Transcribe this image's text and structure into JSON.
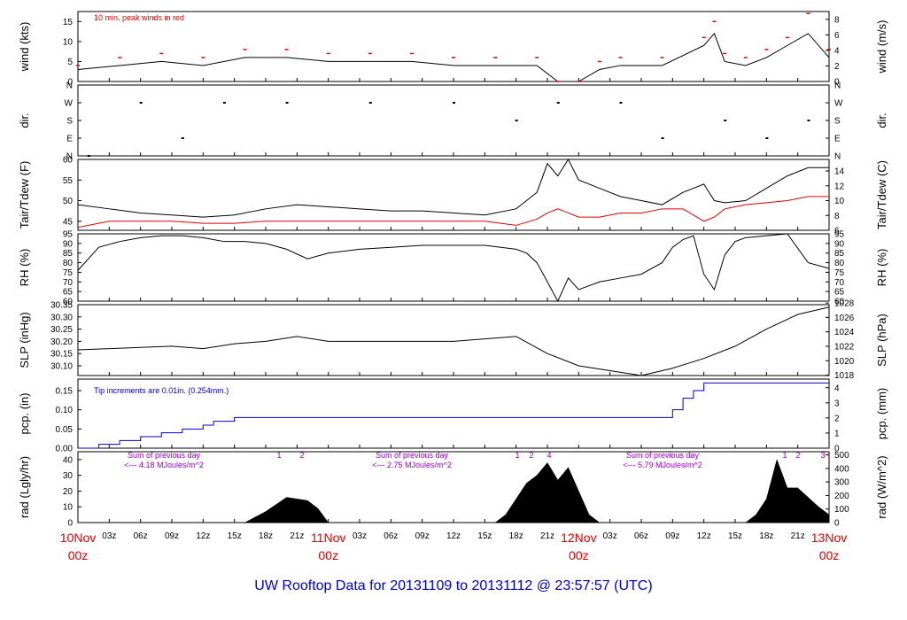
{
  "footer_title": "UW Rooftop Data for 20131109  to  20131112 @ 23:57:57  (UTC)",
  "colors": {
    "red": "#e00000",
    "blue": "#0000cc",
    "purple": "#9900cc",
    "black": "#000000"
  },
  "time_axis": {
    "hour_ticks": [
      "03z",
      "06z",
      "09z",
      "12z",
      "15z",
      "18z",
      "21z",
      "03z",
      "06z",
      "09z",
      "12z",
      "15z",
      "18z",
      "21z",
      "03z",
      "06z",
      "09z",
      "12z",
      "15z",
      "18z",
      "21z"
    ],
    "day_labels": [
      {
        "date": "10Nov",
        "hour": "00z"
      },
      {
        "date": "11Nov",
        "hour": "00z"
      },
      {
        "date": "12Nov",
        "hour": "00z"
      },
      {
        "date": "13Nov",
        "hour": "00z"
      }
    ],
    "range_hours": [
      0,
      72
    ]
  },
  "panels": {
    "wind": {
      "left_label": "wind (kts)",
      "right_label": "wind (m/s)",
      "left_ticks": [
        "0",
        "5",
        "10",
        "15"
      ],
      "right_ticks": [
        "0",
        "2",
        "4",
        "6",
        "8"
      ],
      "annotation": "10 min. peak winds in red",
      "ylim": [
        0,
        17.5
      ]
    },
    "dir": {
      "left_label": "dir.",
      "right_label": "dir.",
      "ticks": [
        "N",
        "E",
        "S",
        "W",
        "N"
      ]
    },
    "temp": {
      "left_label": "Tair/Tdew (F)",
      "right_label": "Tair/Tdew (C)",
      "left_ticks": [
        "45",
        "50",
        "55",
        "60"
      ],
      "right_ticks": [
        "6",
        "8",
        "10",
        "12",
        "14"
      ],
      "ylim": [
        42.8,
        60
      ]
    },
    "rh": {
      "left_label": "RH (%)",
      "right_label": "RH (%)",
      "ticks": [
        "60",
        "65",
        "70",
        "75",
        "80",
        "85",
        "90",
        "95"
      ],
      "ylim": [
        60,
        95
      ]
    },
    "slp": {
      "left_label": "SLP (inHg)",
      "right_label": "SLP (hPa)",
      "left_ticks": [
        "30.10",
        "30.15",
        "30.20",
        "30.25",
        "30.30",
        "30.35"
      ],
      "right_ticks": [
        "1018",
        "1020",
        "1022",
        "1024",
        "1026",
        "1028"
      ],
      "ylim": [
        30.06,
        30.35
      ]
    },
    "pcp": {
      "left_label": "pcp. (in)",
      "right_label": "pcp. (mm)",
      "left_ticks": [
        "0.00",
        "0.05",
        "0.10",
        "0.15"
      ],
      "right_ticks": [
        "0",
        "1",
        "2",
        "3",
        "4"
      ],
      "annotation": "Tip increments are 0.01in. (0.254mm.)",
      "ylim": [
        0,
        0.18
      ]
    },
    "rad": {
      "left_label": "rad (Lgly/hr)",
      "right_label": "rad (W/m^2)",
      "left_ticks": [
        "0",
        "10",
        "20",
        "30",
        "40"
      ],
      "right_ticks": [
        "0",
        "100",
        "200",
        "300",
        "400",
        "500"
      ],
      "ylim": [
        0,
        45
      ],
      "day_sums": [
        {
          "line1": "Sum of previous day",
          "line2": "<--- 4.18 MJoules/m^2"
        },
        {
          "line1": "Sum of previous day",
          "line2": "<--- 2.75 MJoules/m^2"
        },
        {
          "line1": "Sum of previous day",
          "line2": "<--- 5.79 MJoules/m^2"
        }
      ],
      "markers": [
        "1",
        "2",
        "1",
        "2",
        "4",
        "1",
        "2",
        "3"
      ]
    }
  },
  "chart_data": {
    "type": "line",
    "x_unit": "hours since 10Nov 00z",
    "series": [
      {
        "name": "wind",
        "x": [
          0,
          4,
          8,
          12,
          16,
          20,
          24,
          28,
          32,
          36,
          40,
          44,
          46,
          48,
          50,
          52,
          56,
          60,
          61,
          62,
          64,
          66,
          68,
          70,
          72
        ],
        "values": [
          3,
          4,
          5,
          4,
          6,
          6,
          5,
          5,
          5,
          4,
          4,
          4,
          0,
          0,
          3,
          4,
          4,
          9,
          12,
          5,
          4,
          6,
          9,
          12,
          6
        ]
      },
      {
        "name": "peak wind",
        "x": [
          0,
          4,
          8,
          12,
          16,
          20,
          24,
          28,
          32,
          36,
          40,
          44,
          46,
          48,
          50,
          52,
          56,
          60,
          61,
          62,
          64,
          66,
          68,
          70,
          72
        ],
        "values": [
          4,
          6,
          7,
          6,
          8,
          8,
          7,
          7,
          7,
          6,
          6,
          6,
          0,
          0,
          5,
          6,
          6,
          11,
          15,
          7,
          6,
          8,
          11,
          17,
          8
        ]
      },
      {
        "name": "Tair",
        "x": [
          0,
          3,
          6,
          9,
          12,
          15,
          18,
          21,
          24,
          27,
          30,
          33,
          36,
          39,
          42,
          44,
          45,
          46,
          47,
          48,
          50,
          52,
          54,
          56,
          58,
          60,
          61,
          62,
          64,
          66,
          68,
          70,
          72
        ],
        "values": [
          49,
          48,
          47,
          46.5,
          46,
          46.5,
          48,
          49,
          48.5,
          48,
          47.5,
          47.5,
          47,
          46.5,
          48,
          52,
          59,
          56,
          60,
          55,
          53,
          51,
          50,
          49,
          52,
          54,
          50,
          49.5,
          50,
          53,
          56,
          58,
          58
        ]
      },
      {
        "name": "Tdew",
        "x": [
          0,
          3,
          6,
          9,
          12,
          15,
          18,
          21,
          24,
          27,
          30,
          33,
          36,
          39,
          42,
          44,
          45,
          46,
          47,
          48,
          50,
          52,
          54,
          56,
          58,
          60,
          61,
          62,
          64,
          66,
          68,
          70,
          72
        ],
        "values": [
          43.5,
          45,
          45,
          45,
          44.5,
          44.5,
          45,
          45,
          45,
          45,
          45,
          45,
          45,
          45,
          44,
          45.5,
          47,
          48,
          47,
          46,
          46,
          47,
          47,
          48,
          48,
          45,
          46,
          48,
          49,
          49.5,
          50,
          51,
          51
        ]
      },
      {
        "name": "RH",
        "x": [
          0,
          2,
          4,
          6,
          8,
          10,
          12,
          14,
          16,
          18,
          20,
          22,
          24,
          27,
          30,
          33,
          36,
          39,
          42,
          43,
          44,
          45,
          46,
          47,
          48,
          50,
          52,
          54,
          56,
          57,
          58,
          59,
          60,
          61,
          62,
          63,
          64,
          66,
          68,
          70,
          72
        ],
        "values": [
          76,
          88,
          91,
          93,
          94,
          94,
          93,
          91,
          91,
          90,
          87,
          82,
          85,
          87,
          88,
          89,
          89,
          89,
          87,
          85,
          80,
          70,
          60,
          72,
          66,
          70,
          72,
          74,
          80,
          88,
          92,
          94,
          74,
          66,
          84,
          91,
          93,
          94,
          95,
          80,
          77
        ]
      },
      {
        "name": "SLP",
        "x": [
          0,
          3,
          6,
          9,
          12,
          15,
          18,
          21,
          24,
          27,
          30,
          33,
          36,
          39,
          42,
          45,
          48,
          51,
          54,
          57,
          60,
          63,
          66,
          69,
          72
        ],
        "values": [
          30.165,
          30.17,
          30.175,
          30.18,
          30.17,
          30.19,
          30.2,
          30.22,
          30.2,
          30.2,
          30.2,
          30.2,
          30.2,
          30.21,
          30.22,
          30.15,
          30.1,
          30.08,
          30.06,
          30.09,
          30.13,
          30.18,
          30.25,
          30.31,
          30.34
        ]
      },
      {
        "name": "pcp",
        "x": [
          0,
          1,
          2,
          3,
          4,
          5,
          6,
          7,
          8,
          9,
          10,
          11,
          12,
          13,
          14,
          15,
          16,
          17,
          18,
          20,
          28,
          36,
          44,
          52,
          56,
          57,
          58,
          59,
          60,
          61,
          62,
          63,
          64,
          66,
          70,
          72
        ],
        "values": [
          0,
          0,
          0.01,
          0.01,
          0.02,
          0.02,
          0.03,
          0.03,
          0.04,
          0.04,
          0.05,
          0.05,
          0.06,
          0.07,
          0.07,
          0.08,
          0.08,
          0.08,
          0.08,
          0.08,
          0.08,
          0.08,
          0.08,
          0.08,
          0.08,
          0.1,
          0.13,
          0.15,
          0.17,
          0.17,
          0.17,
          0.17,
          0.17,
          0.17,
          0.17,
          0.17
        ]
      },
      {
        "name": "rad",
        "x": [
          0,
          16,
          18,
          20,
          22,
          23,
          24,
          40,
          41,
          42,
          43,
          44,
          45,
          46,
          47,
          48,
          49,
          50,
          64,
          65,
          66,
          67,
          68,
          69,
          70,
          71,
          72
        ],
        "values": [
          0,
          0,
          7,
          16,
          14,
          9,
          0,
          0,
          5,
          15,
          25,
          30,
          38,
          27,
          35,
          20,
          5,
          0,
          0,
          5,
          15,
          40,
          22,
          22,
          16,
          10,
          5
        ]
      }
    ],
    "wind_dir_points": [
      {
        "x": 1,
        "v": "N"
      },
      {
        "x": 6,
        "v": "W"
      },
      {
        "x": 10,
        "v": "E"
      },
      {
        "x": 14,
        "v": "W"
      },
      {
        "x": 20,
        "v": "W"
      },
      {
        "x": 28,
        "v": "W"
      },
      {
        "x": 36,
        "v": "W"
      },
      {
        "x": 42,
        "v": "S"
      },
      {
        "x": 46,
        "v": "W"
      },
      {
        "x": 52,
        "v": "W"
      },
      {
        "x": 56,
        "v": "E"
      },
      {
        "x": 62,
        "v": "S"
      },
      {
        "x": 66,
        "v": "E"
      },
      {
        "x": 70,
        "v": "S"
      }
    ]
  }
}
